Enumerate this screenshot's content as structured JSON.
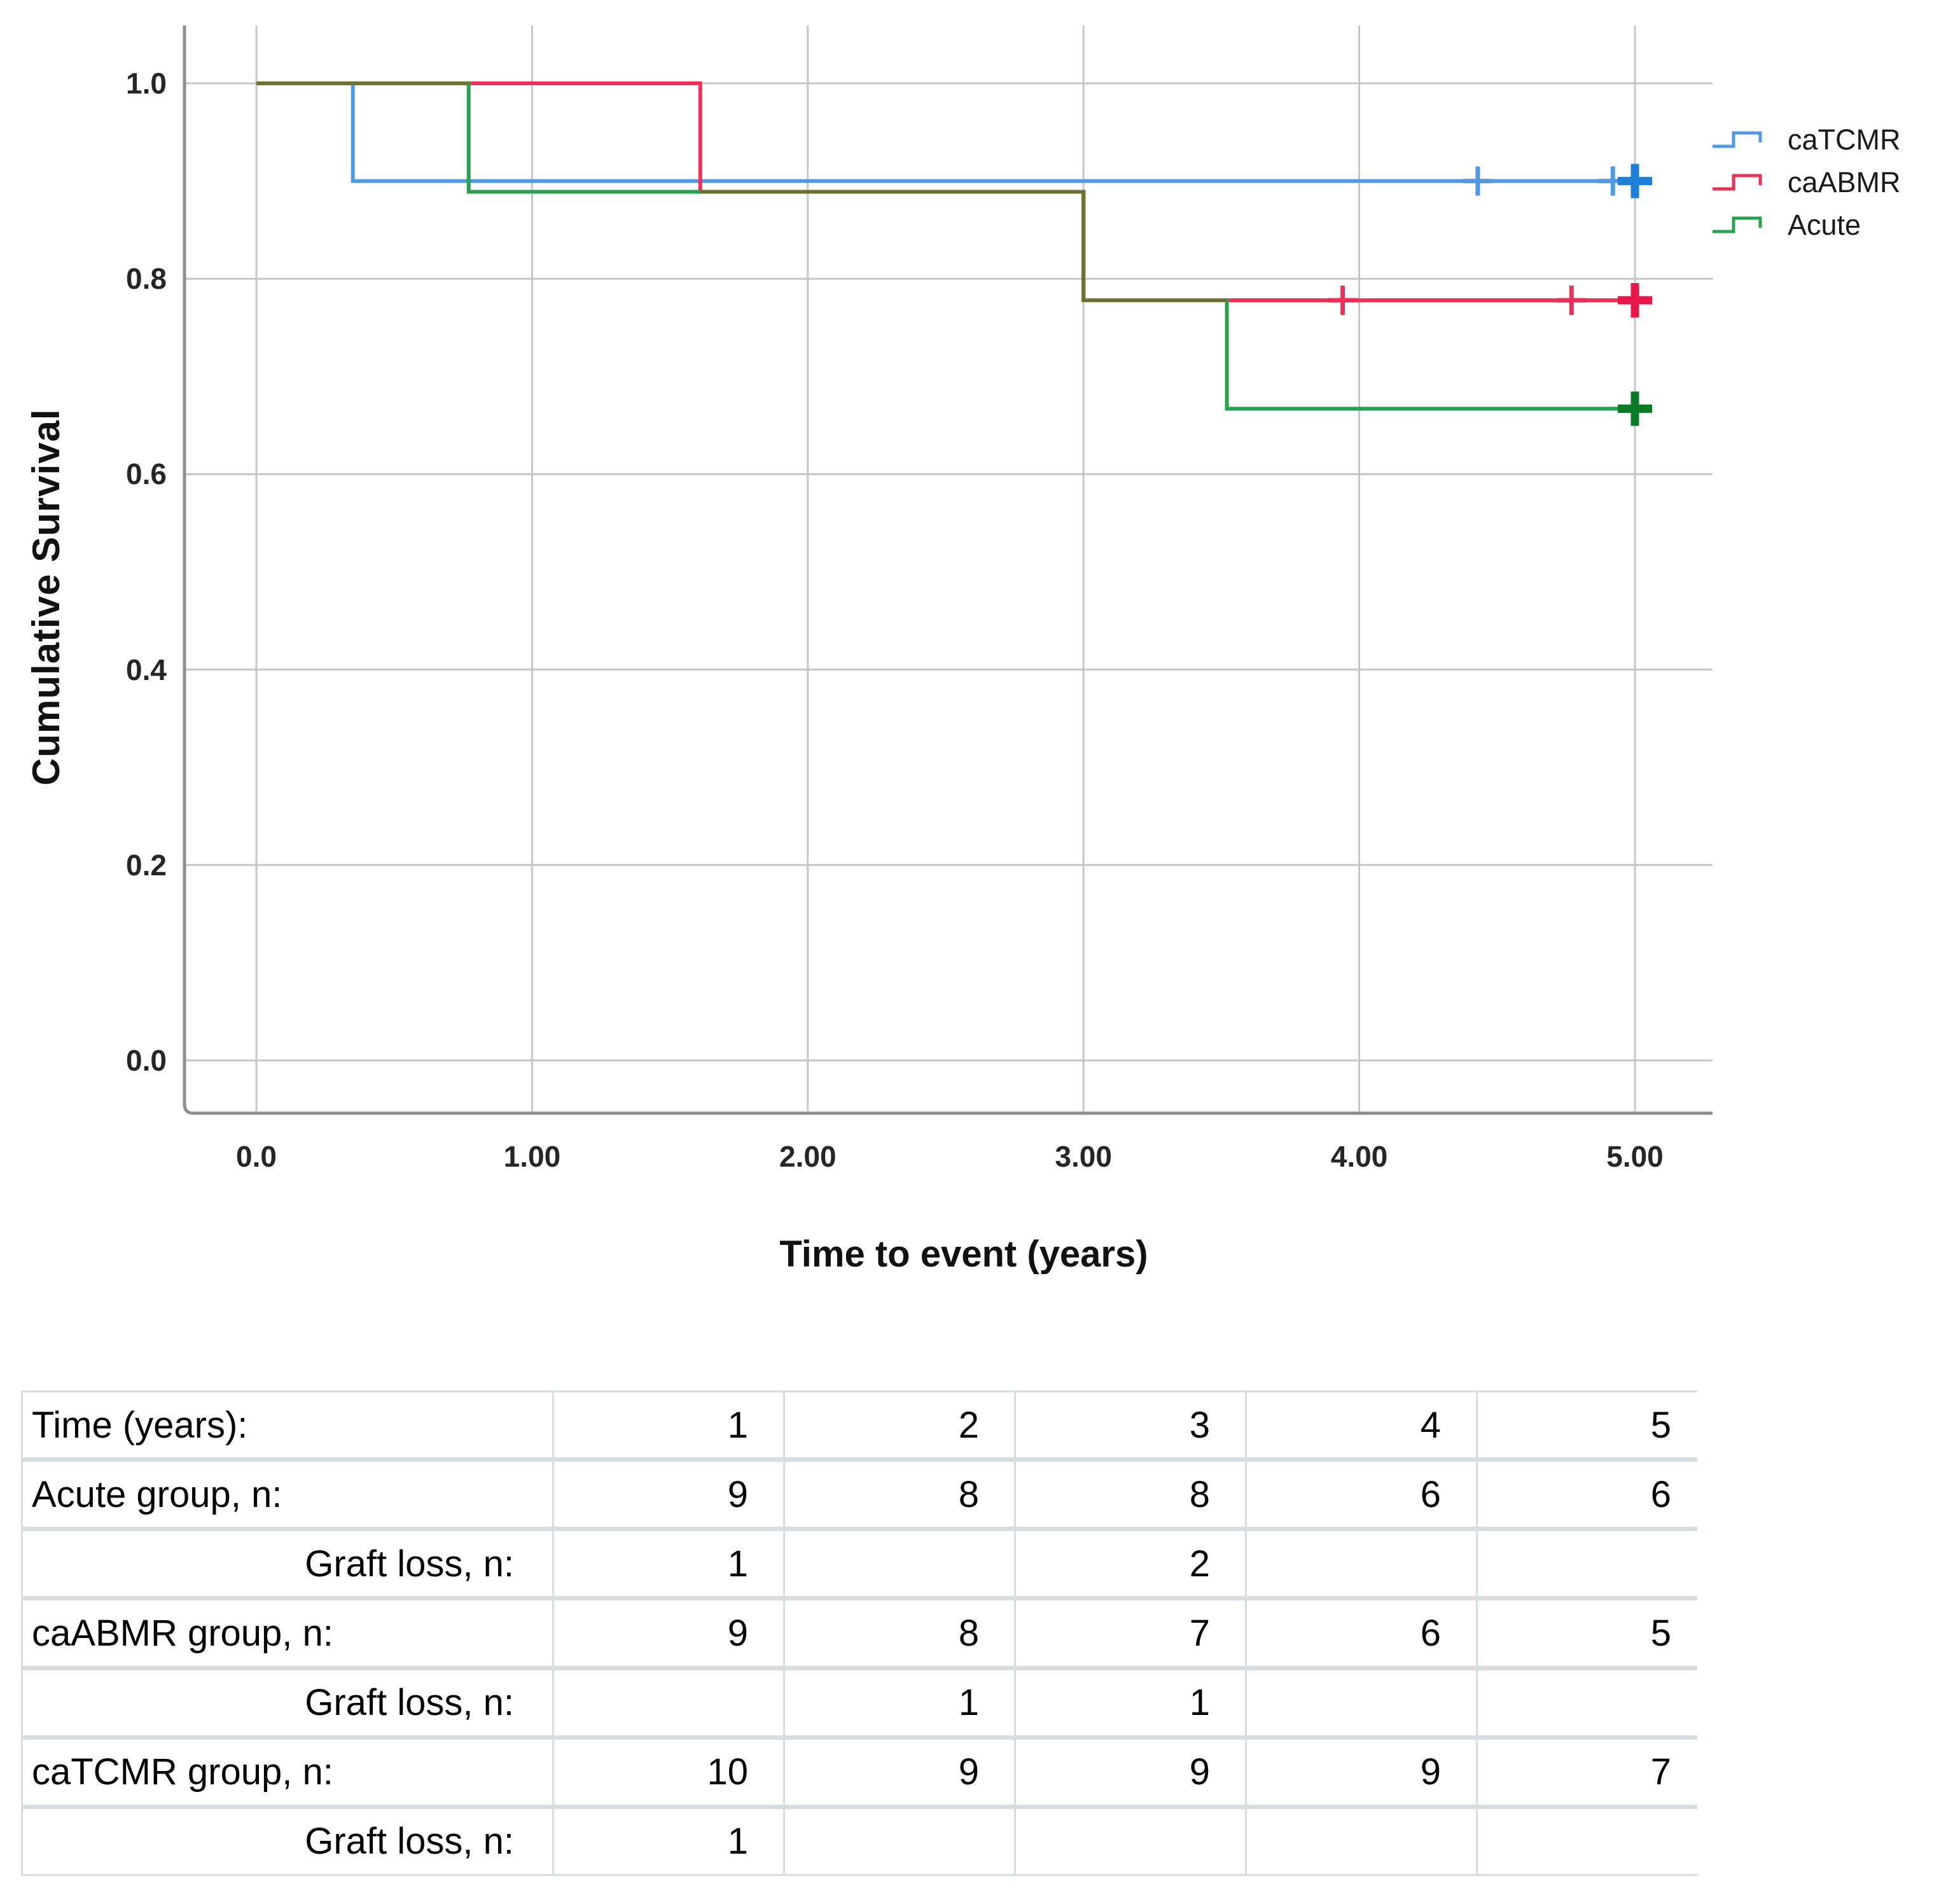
{
  "chart": {
    "legend": [
      {
        "label": "caTCMR",
        "color": "#519ae3"
      },
      {
        "label": "caABMR",
        "color": "#ee3058"
      },
      {
        "label": "Acute",
        "color": "#2aa14d"
      }
    ]
  },
  "chart_data": {
    "type": "line",
    "subtype": "kaplan-meier-step",
    "title": "",
    "xlabel": "Time to event (years)",
    "ylabel": "Cumulative Survival",
    "xlim": [
      -0.27,
      5.3
    ],
    "ylim": [
      -0.055,
      1.06
    ],
    "grid": true,
    "legend_position": "top-right",
    "x_ticks": [
      0,
      1,
      2,
      3,
      4,
      5
    ],
    "x_tick_labels": [
      "0.0",
      "1.00",
      "2.00",
      "3.00",
      "4.00",
      "5.00"
    ],
    "y_ticks": [
      1.0,
      0.8,
      0.6,
      0.4,
      0.2,
      0.0
    ],
    "y_tick_labels": [
      "1.0",
      "0.8",
      "0.6",
      "0.4",
      "0.2",
      "0.0"
    ],
    "series": [
      {
        "name": "caTCMR",
        "color": "#519ae3",
        "censor_color": "#1f7fd6",
        "steps": [
          [
            0,
            1.0
          ],
          [
            0.35,
            1.0
          ],
          [
            0.35,
            0.9
          ],
          [
            5.05,
            0.9
          ]
        ],
        "censors": [
          {
            "t": 4.43,
            "v": 0.9,
            "bold": false
          },
          {
            "t": 4.92,
            "v": 0.9,
            "bold": false
          },
          {
            "t": 5.0,
            "v": 0.9,
            "bold": true
          }
        ]
      },
      {
        "name": "caABMR",
        "color": "#ee3058",
        "censor_color": "#e8174b",
        "steps": [
          [
            0,
            1.0
          ],
          [
            1.61,
            1.0
          ],
          [
            1.61,
            0.889
          ],
          [
            3.0,
            0.889
          ],
          [
            3.0,
            0.778
          ],
          [
            5.05,
            0.778
          ]
        ],
        "censors": [
          {
            "t": 3.94,
            "v": 0.778,
            "bold": false
          },
          {
            "t": 4.77,
            "v": 0.778,
            "bold": false
          },
          {
            "t": 5.0,
            "v": 0.778,
            "bold": true
          }
        ]
      },
      {
        "name": "Acute",
        "color": "#2aa14d",
        "censor_color": "#0b7a28",
        "steps": [
          [
            0,
            1.0
          ],
          [
            0.77,
            1.0
          ],
          [
            0.77,
            0.889
          ],
          [
            3.0,
            0.889
          ],
          [
            3.0,
            0.778
          ],
          [
            3.52,
            0.778
          ],
          [
            3.52,
            0.667
          ],
          [
            5.04,
            0.667
          ]
        ],
        "censors": [
          {
            "t": 5.0,
            "v": 0.667,
            "bold": true
          }
        ]
      }
    ],
    "overlap_segments": [
      {
        "color": "#6f7031",
        "points": [
          [
            0,
            1.0
          ],
          [
            0.77,
            1.0
          ]
        ]
      },
      {
        "color": "#6f7031",
        "points": [
          [
            1.61,
            0.889
          ],
          [
            3.0,
            0.889
          ],
          [
            3.0,
            0.778
          ],
          [
            3.52,
            0.778
          ]
        ]
      }
    ]
  },
  "table": {
    "rows": [
      {
        "label": "Time (years):",
        "align": "left",
        "values": [
          "1",
          "2",
          "3",
          "4",
          "5"
        ]
      },
      {
        "label": "Acute group, n:",
        "align": "left",
        "values": [
          "9",
          "8",
          "8",
          "6",
          "6"
        ]
      },
      {
        "label": "Graft loss, n:",
        "align": "right",
        "values": [
          "1",
          "",
          "2",
          "",
          ""
        ]
      },
      {
        "label": "caABMR group, n:",
        "align": "left",
        "values": [
          "9",
          "8",
          "7",
          "6",
          "5"
        ]
      },
      {
        "label": "Graft loss, n:",
        "align": "right",
        "values": [
          "",
          "1",
          "1",
          "",
          ""
        ]
      },
      {
        "label": "caTCMR group, n:",
        "align": "left",
        "values": [
          "10",
          "9",
          "9",
          "9",
          "7"
        ]
      },
      {
        "label": "Graft loss, n:",
        "align": "right",
        "values": [
          "1",
          "",
          "",
          "",
          ""
        ]
      }
    ]
  }
}
